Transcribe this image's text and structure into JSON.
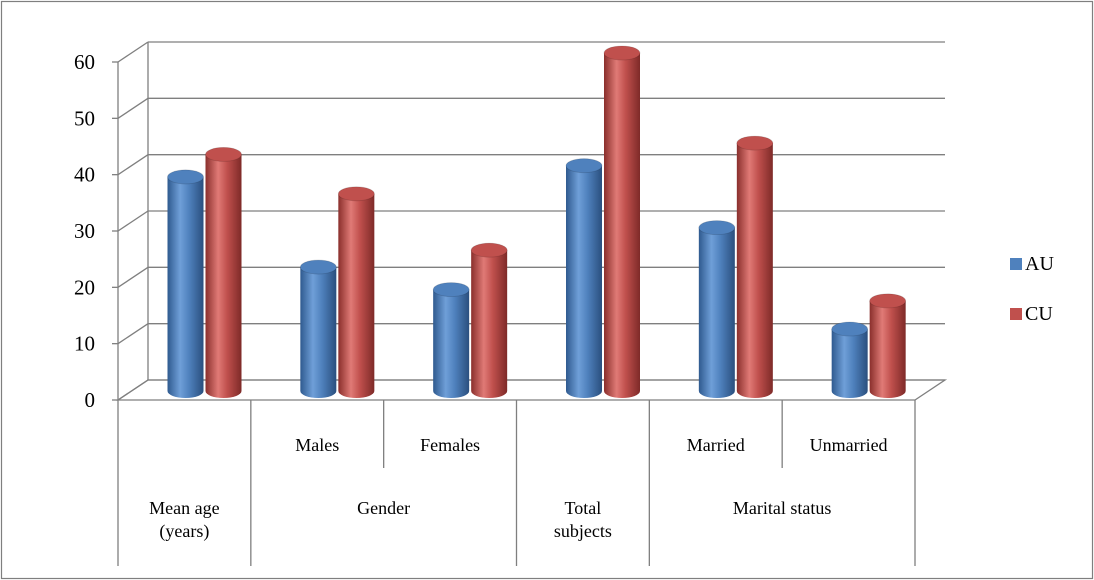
{
  "chart_data": {
    "type": "bar",
    "subtype": "3d-cylinder-clustered",
    "categories": [
      {
        "label": "Mean age\n(years)",
        "group": ""
      },
      {
        "label": "Males",
        "group": "Gender"
      },
      {
        "label": "Females",
        "group": "Gender"
      },
      {
        "label": "Total\nsubjects",
        "group": ""
      },
      {
        "label": "Married",
        "group": "Marital status"
      },
      {
        "label": "Unmarried",
        "group": "Marital status"
      }
    ],
    "series": [
      {
        "name": "AU",
        "color": "#4F81BD",
        "values": [
          38,
          22,
          18,
          40,
          29,
          11
        ]
      },
      {
        "name": "CU",
        "color": "#C0504D",
        "values": [
          42,
          35,
          25,
          60,
          44,
          16
        ]
      }
    ],
    "ylim": [
      0,
      60
    ],
    "y_ticks": [
      "0",
      "10",
      "20",
      "30",
      "40",
      "50",
      "60"
    ],
    "grid": true,
    "legend_position": "right"
  }
}
